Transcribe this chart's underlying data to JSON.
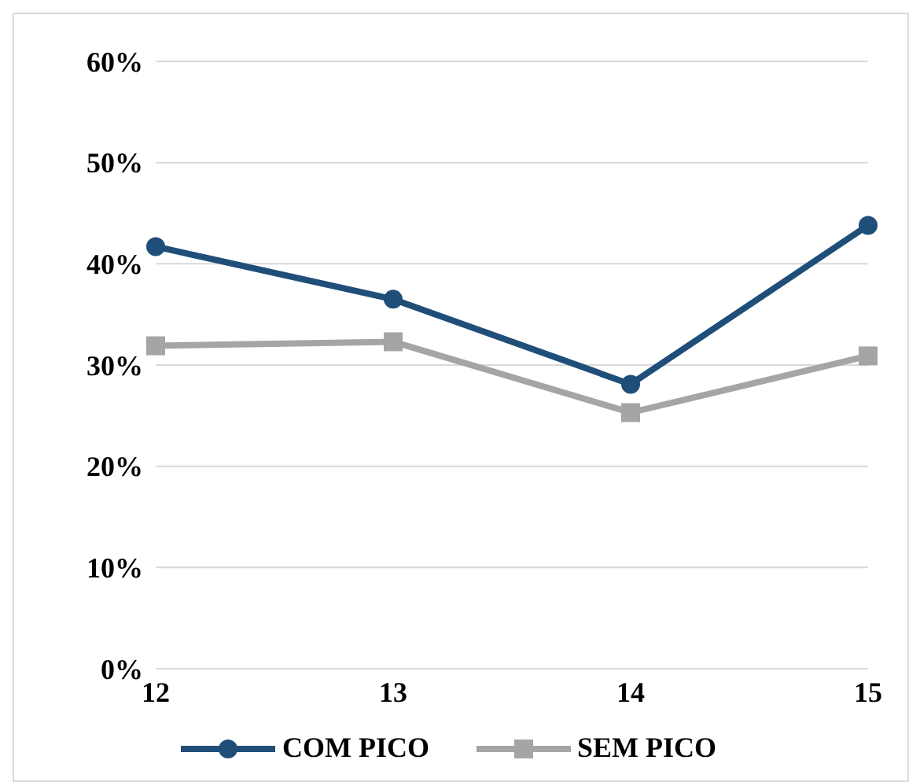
{
  "chart_data": {
    "type": "line",
    "categories": [
      "12",
      "13",
      "14",
      "15"
    ],
    "series": [
      {
        "name": "COM PICO",
        "color": "#1f4e79",
        "values": [
          41.7,
          36.5,
          28.1,
          43.8
        ],
        "marker": "circle"
      },
      {
        "name": "SEM PICO",
        "color": "#a5a5a5",
        "values": [
          31.9,
          32.3,
          25.3,
          30.9
        ],
        "marker": "square"
      }
    ],
    "ylim": [
      0,
      60
    ],
    "yticks": [
      {
        "value": 0,
        "label": "0%"
      },
      {
        "value": 10,
        "label": "10%"
      },
      {
        "value": 20,
        "label": "20%"
      },
      {
        "value": 30,
        "label": "30%"
      },
      {
        "value": 40,
        "label": "40%"
      },
      {
        "value": 50,
        "label": "50%"
      },
      {
        "value": 60,
        "label": "60%"
      }
    ],
    "grid": "y",
    "legend": "bottom"
  }
}
